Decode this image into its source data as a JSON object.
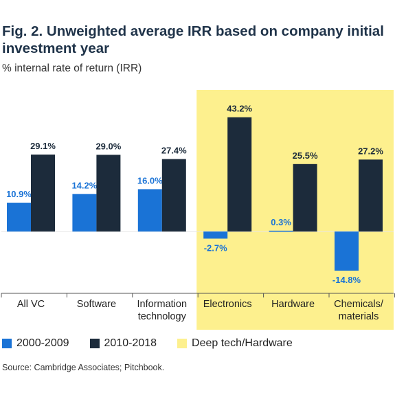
{
  "title": "Fig. 2. Unweighted average IRR based on company initial investment year",
  "subtitle": "% internal rate of return (IRR)",
  "source": "Source: Cambridge Associates; Pitchbook.",
  "colors": {
    "series_2000_2009": "#1a73d6",
    "series_2010_2018": "#1c2b3b",
    "highlight": "#fdf08e"
  },
  "legend": [
    {
      "label": "2000-2009",
      "color": "#1a73d6"
    },
    {
      "label": "2010-2018",
      "color": "#1c2b3b"
    },
    {
      "label": "Deep tech/Hardware",
      "color": "#fdf08e"
    }
  ],
  "chart_data": {
    "type": "bar",
    "categories": [
      [
        "All VC"
      ],
      [
        "Software"
      ],
      [
        "Information",
        "technology"
      ],
      [
        "Electronics"
      ],
      [
        "Hardware"
      ],
      [
        "Chemicals/",
        "materials"
      ]
    ],
    "series": [
      {
        "name": "2000-2009",
        "values": [
          10.9,
          14.2,
          16.0,
          -2.7,
          0.3,
          -14.8
        ],
        "labels": [
          "10.9%",
          "14.2%",
          "16.0%",
          "-2.7%",
          "0.3%",
          "-14.8%"
        ]
      },
      {
        "name": "2010-2018",
        "values": [
          29.1,
          29.0,
          27.4,
          43.2,
          25.5,
          27.2
        ],
        "labels": [
          "29.1%",
          "29.0%",
          "27.4%",
          "43.2%",
          "25.5%",
          "27.2%"
        ]
      }
    ],
    "highlight_categories": [
      "Electronics",
      "Hardware",
      "Chemicals/materials"
    ],
    "highlight_label": "Deep tech/Hardware",
    "ylim": [
      -20,
      45
    ],
    "grid": false
  }
}
